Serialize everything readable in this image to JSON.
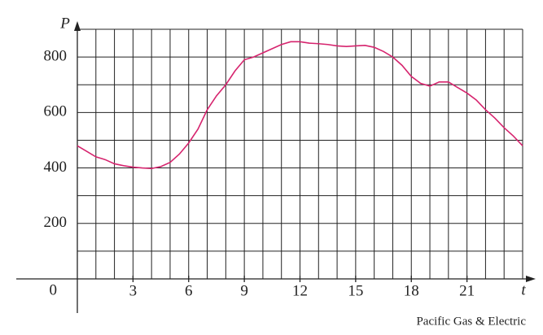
{
  "chart_data": {
    "type": "line",
    "x_label": "t",
    "y_label": "P",
    "source": "Pacific Gas & Electric",
    "x": [
      0,
      0.5,
      1,
      1.5,
      2,
      2.5,
      3,
      3.5,
      4,
      4.5,
      5,
      5.5,
      6,
      6.5,
      7,
      7.5,
      8,
      8.5,
      9,
      9.5,
      10,
      10.5,
      11,
      11.5,
      12,
      12.5,
      13,
      13.5,
      14,
      14.5,
      15,
      15.5,
      16,
      16.5,
      17,
      17.5,
      18,
      18.5,
      19,
      19.5,
      20,
      20.5,
      21,
      21.5,
      22,
      22.5,
      23,
      23.5,
      24
    ],
    "series": [
      {
        "name": "P",
        "color": "#d6246e",
        "values": [
          480,
          460,
          440,
          430,
          415,
          408,
          403,
          400,
          398,
          405,
          420,
          450,
          490,
          540,
          610,
          660,
          700,
          750,
          790,
          800,
          815,
          830,
          845,
          855,
          855,
          850,
          848,
          845,
          840,
          838,
          840,
          842,
          835,
          820,
          800,
          770,
          730,
          705,
          695,
          710,
          710,
          690,
          670,
          645,
          610,
          580,
          545,
          515,
          480
        ]
      }
    ],
    "xlim": [
      0,
      24
    ],
    "ylim": [
      0,
      900
    ],
    "xticks": [
      3,
      6,
      9,
      12,
      15,
      18,
      21
    ],
    "yticks": [
      0,
      200,
      400,
      600,
      800
    ],
    "xgrid": [
      0,
      1,
      2,
      3,
      4,
      5,
      6,
      7,
      8,
      9,
      10,
      11,
      12,
      13,
      14,
      15,
      16,
      17,
      18,
      19,
      20,
      21,
      22,
      23,
      24
    ],
    "ygrid": [
      100,
      200,
      300,
      400,
      500,
      600,
      700,
      800,
      900
    ],
    "grid": true
  }
}
